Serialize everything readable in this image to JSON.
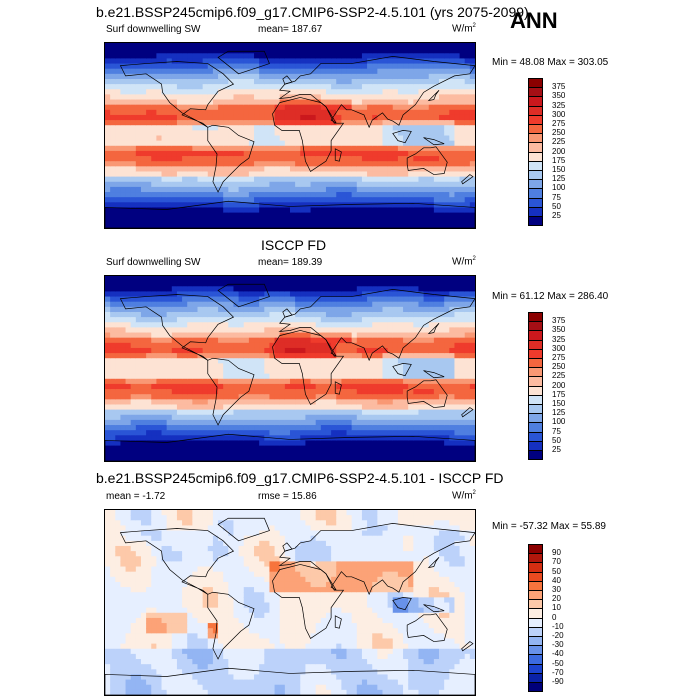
{
  "season": "ANN",
  "panels": [
    {
      "title": "b.e21.BSSP245cmip6.f09_g17.CMIP6-SSP2-4.5.101 (yrs 2075-2099)",
      "variable": "Surf downwelling SW",
      "stat_left": "mean= 187.67",
      "unit": "W/m",
      "unit_sup": "2",
      "minmax": "Min = 48.08 Max = 303.05"
    },
    {
      "title": "ISCCP FD",
      "variable": "Surf downwelling SW",
      "stat_left": "mean= 189.39",
      "unit": "W/m",
      "unit_sup": "2",
      "minmax": "Min = 61.12 Max = 286.40"
    },
    {
      "title": "b.e21.BSSP245cmip6.f09_g17.CMIP6-SSP2-4.5.101 - ISCCP FD",
      "stat_left": "mean = -1.72",
      "stat_mid": "rmse = 15.86",
      "unit": "W/m",
      "unit_sup": "2",
      "minmax": "Min = -57.32 Max = 55.89"
    }
  ],
  "colorbars": {
    "abs": {
      "labels": [
        "375",
        "350",
        "325",
        "300",
        "275",
        "250",
        "225",
        "200",
        "175",
        "150",
        "125",
        "100",
        "75",
        "50",
        "25"
      ],
      "colors": [
        "#8b0000",
        "#a50f15",
        "#cb181d",
        "#de2d26",
        "#ef3b2c",
        "#f4663f",
        "#f99874",
        "#fcbba1",
        "#fde3d4",
        "#d0e4f7",
        "#a8c8f0",
        "#7ea6e8",
        "#4f7fe0",
        "#2a55d6",
        "#1530c0",
        "#000080"
      ]
    },
    "diff": {
      "labels": [
        "90",
        "70",
        "50",
        "40",
        "30",
        "20",
        "10",
        "0",
        "-10",
        "-20",
        "-30",
        "-40",
        "-50",
        "-70",
        "-90"
      ],
      "colors": [
        "#8b0000",
        "#b0170c",
        "#d42e12",
        "#ea4a20",
        "#f7743d",
        "#fca277",
        "#fdc9a9",
        "#fdeee3",
        "#e6efff",
        "#bcd2fa",
        "#93b5f3",
        "#6892ea",
        "#3c6be0",
        "#1c43cf",
        "#0a22a8",
        "#00007a"
      ]
    }
  },
  "chart_data": [
    {
      "type": "heatmap",
      "title": "b.e21.BSSP245cmip6.f09_g17.CMIP6-SSP2-4.5.101 (yrs 2075-2099)",
      "variable": "Surf downwelling SW",
      "units": "W/m2",
      "mean": 187.67,
      "min": 48.08,
      "max": 303.05,
      "levels": [
        25,
        50,
        75,
        100,
        125,
        150,
        175,
        200,
        225,
        250,
        275,
        300,
        325,
        350,
        375
      ]
    },
    {
      "type": "heatmap",
      "title": "ISCCP FD",
      "variable": "Surf downwelling SW",
      "units": "W/m2",
      "mean": 189.39,
      "min": 61.12,
      "max": 286.4,
      "levels": [
        25,
        50,
        75,
        100,
        125,
        150,
        175,
        200,
        225,
        250,
        275,
        300,
        325,
        350,
        375
      ]
    },
    {
      "type": "heatmap",
      "title": "b.e21.BSSP245cmip6.f09_g17.CMIP6-SSP2-4.5.101 - ISCCP FD",
      "units": "W/m2",
      "mean": -1.72,
      "rmse": 15.86,
      "min": -57.32,
      "max": 55.89,
      "levels": [
        -90,
        -70,
        -50,
        -40,
        -30,
        -20,
        -10,
        0,
        10,
        20,
        30,
        40,
        50,
        70,
        90
      ]
    }
  ]
}
